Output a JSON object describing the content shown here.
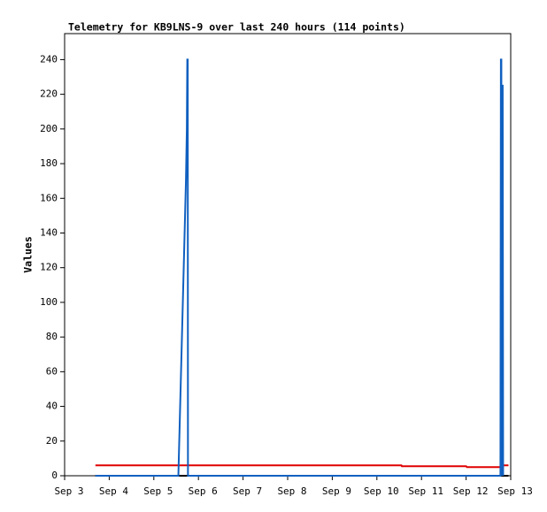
{
  "chart_data": {
    "type": "line",
    "title": "Telemetry for KB9LNS-9 over last 240 hours (114 points)",
    "y_label": "Values",
    "xlim": [
      3,
      13
    ],
    "xticks": [
      {
        "value": 3,
        "label": "Sep 3"
      },
      {
        "value": 4,
        "label": "Sep 4"
      },
      {
        "value": 5,
        "label": "Sep 5"
      },
      {
        "value": 6,
        "label": "Sep 6"
      },
      {
        "value": 7,
        "label": "Sep 7"
      },
      {
        "value": 8,
        "label": "Sep 8"
      },
      {
        "value": 9,
        "label": "Sep 9"
      },
      {
        "value": 10,
        "label": "Sep 10"
      },
      {
        "value": 11,
        "label": "Sep 11"
      },
      {
        "value": 12,
        "label": "Sep 12"
      },
      {
        "value": 13,
        "label": "Sep 13"
      }
    ],
    "ylim": [
      0,
      255
    ],
    "yticks": [
      0,
      20,
      40,
      60,
      80,
      100,
      120,
      140,
      160,
      180,
      200,
      220,
      240
    ],
    "series": [
      {
        "color": "#000000",
        "x": [
          3.69,
          12.95
        ],
        "values": [
          0,
          0
        ]
      },
      {
        "color": "#e00000",
        "x": [
          3.69,
          10.55,
          10.56,
          12.0,
          12.02,
          12.78,
          12.8,
          12.95
        ],
        "values": [
          6,
          6,
          5.5,
          5.5,
          5,
          5,
          6,
          6
        ]
      },
      {
        "color": "#1060c0",
        "x": [
          3.69,
          5.55,
          5.56,
          5.58,
          5.6,
          5.62,
          5.64,
          5.66,
          5.68,
          5.7,
          5.72,
          5.74,
          5.75,
          5.76,
          5.765,
          12.77,
          12.775,
          12.78,
          12.79,
          12.8,
          12.81,
          12.82,
          12.83
        ],
        "values": [
          0,
          0,
          10,
          30,
          50,
          70,
          90,
          110,
          130,
          150,
          170,
          200,
          240,
          240,
          0,
          0,
          120,
          240,
          240,
          0,
          225,
          225,
          0
        ]
      }
    ]
  }
}
